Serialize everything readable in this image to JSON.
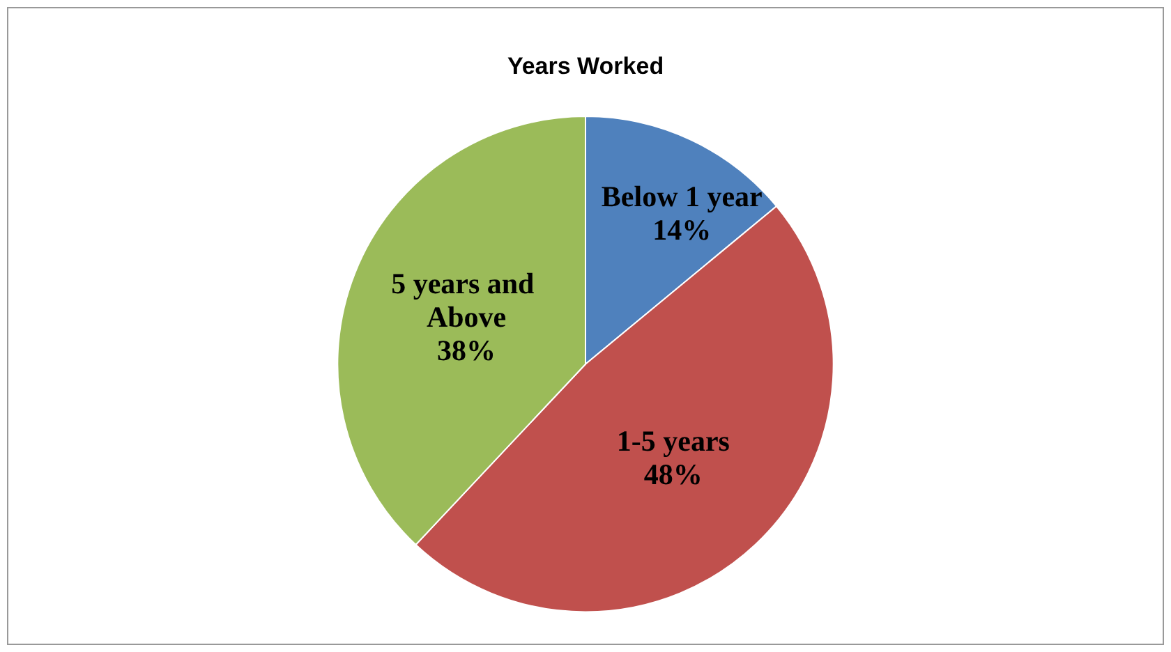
{
  "chart_data": {
    "type": "pie",
    "title": "Years Worked",
    "categories": [
      "Below 1 year",
      "1-5 years",
      "5 years and Above"
    ],
    "values": [
      14,
      48,
      38
    ],
    "value_labels": [
      "14%",
      "48%",
      "38%"
    ],
    "colors": [
      "#4f81bd",
      "#c0504d",
      "#9bbb59"
    ],
    "legend": false
  }
}
